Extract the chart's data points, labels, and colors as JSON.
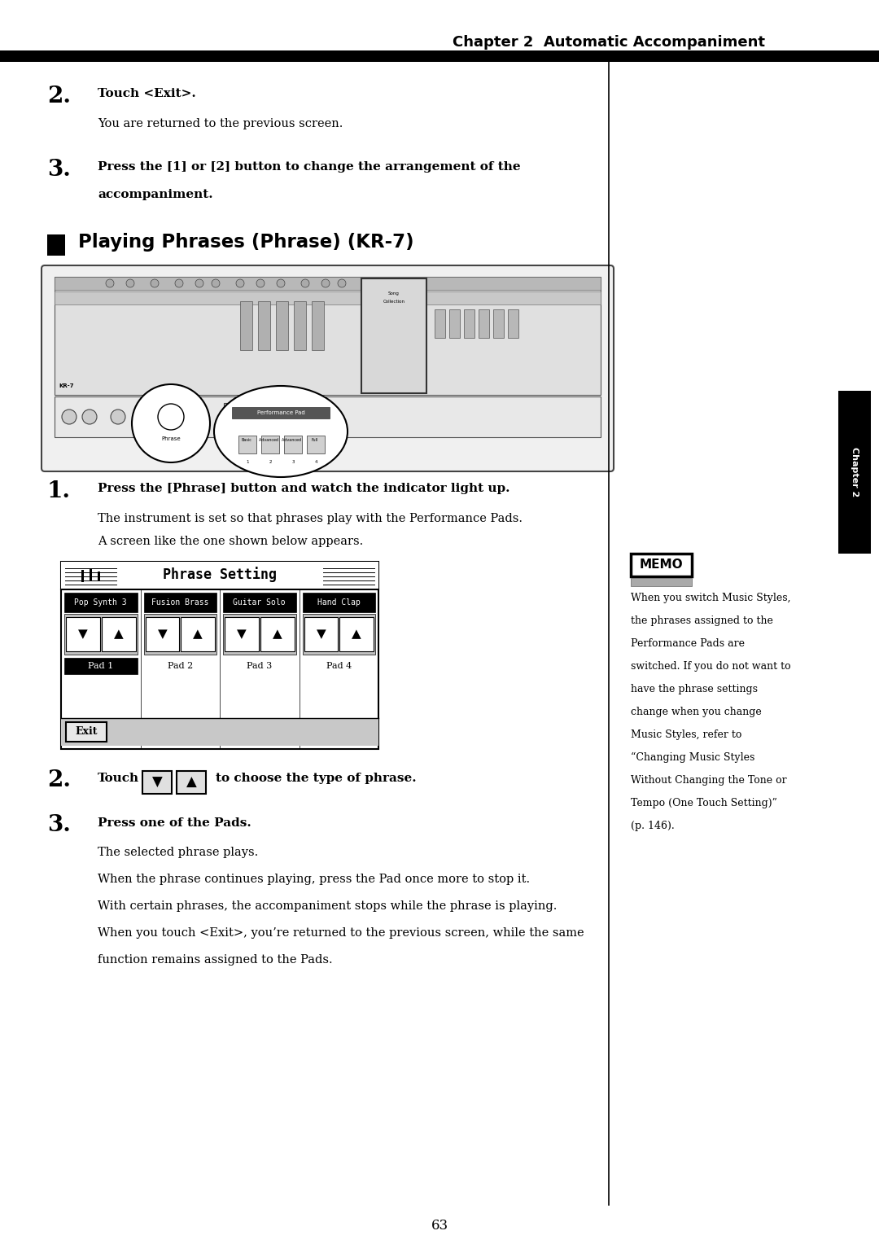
{
  "page_bg": "#ffffff",
  "chapter_title": "Chapter 2  Automatic Accompaniment",
  "chapter_tab_text": "Chapter\n2",
  "section_title": "Playing Phrases (Phrase) (KR-7)",
  "step2_number": "2.",
  "step2_text": "Touch <Exit>.",
  "step2_sub": "You are returned to the previous screen.",
  "step3_number": "3.",
  "step3_bold": "Press the [1] or [2] button to change the arrangement of the",
  "step3_bold2": "accompaniment.",
  "step1b_number": "1.",
  "step1b_bold": "Press the [Phrase] button and watch the indicator light up.",
  "step1b_sub1": "The instrument is set so that phrases play with the Performance Pads.",
  "step1b_sub2": "A screen like the one shown below appears.",
  "step2b_number": "2.",
  "step2b_text": "Touch",
  "step2b_text2": "to choose the type of phrase.",
  "step3b_number": "3.",
  "step3b_bold": "Press one of the Pads.",
  "step3b_sub1": "The selected phrase plays.",
  "step3b_sub2": "When the phrase continues playing, press the Pad once more to stop it.",
  "step3b_sub3": "With certain phrases, the accompaniment stops while the phrase is playing.",
  "step3b_sub4": "When you touch <Exit>, you’re returned to the previous screen, while the same",
  "step3b_sub5": "function remains assigned to the Pads.",
  "page_number": "63",
  "phrase_screen_title": "Phrase Setting",
  "pad_labels": [
    "Pad 1",
    "Pad 2",
    "Pad 3",
    "Pad 4"
  ],
  "pad_names": [
    "Pop Synth 3",
    "Fusion Brass",
    "Guitar Solo",
    "Hand Clap"
  ],
  "memo_title": "MEMO",
  "memo_lines": [
    "When you switch Music Styles,",
    "the phrases assigned to the",
    "Performance Pads are",
    "switched. If you do not want to",
    "have the phrase settings",
    "change when you change",
    "Music Styles, refer to",
    "“Changing Music Styles",
    "Without Changing the Tone or",
    "Tempo (One Touch Setting)”",
    "(p. 146)."
  ]
}
